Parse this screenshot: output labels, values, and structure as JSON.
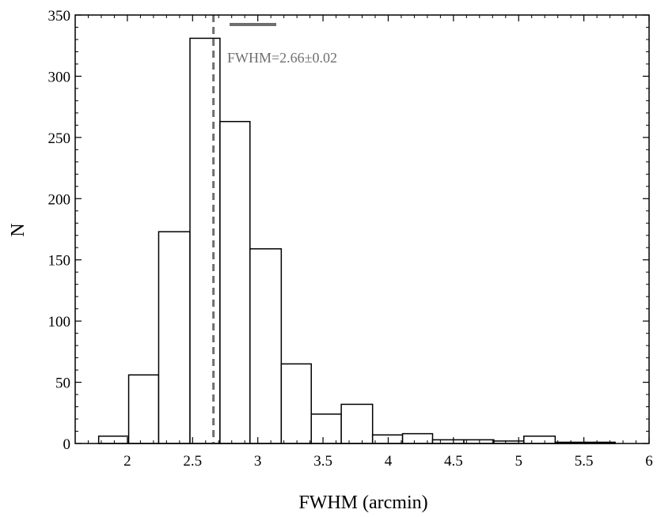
{
  "chart_data": {
    "type": "bar",
    "title": "",
    "xlabel": "FWHM (arcmin)",
    "ylabel": "N",
    "xlim": [
      1.6,
      6.0
    ],
    "ylim": [
      0,
      350
    ],
    "bin_width": 0.2333,
    "xticks": [
      "2",
      "2.5",
      "3",
      "3.5",
      "4",
      "4.5",
      "5",
      "5.5",
      "6"
    ],
    "yticks": [
      "0",
      "50",
      "100",
      "150",
      "200",
      "250",
      "300",
      "350"
    ],
    "xtick_values": [
      2,
      2.5,
      3,
      3.5,
      4,
      4.5,
      5,
      5.5,
      6
    ],
    "ytick_values": [
      0,
      50,
      100,
      150,
      200,
      250,
      300,
      350
    ],
    "bins": [
      {
        "x0": 1.78,
        "x1": 2.01,
        "value": 6
      },
      {
        "x0": 2.01,
        "x1": 2.24,
        "value": 56
      },
      {
        "x0": 2.24,
        "x1": 2.48,
        "value": 173
      },
      {
        "x0": 2.48,
        "x1": 2.71,
        "value": 331
      },
      {
        "x0": 2.71,
        "x1": 2.94,
        "value": 263
      },
      {
        "x0": 2.94,
        "x1": 3.18,
        "value": 159
      },
      {
        "x0": 3.18,
        "x1": 3.41,
        "value": 65
      },
      {
        "x0": 3.41,
        "x1": 3.64,
        "value": 24
      },
      {
        "x0": 3.64,
        "x1": 3.88,
        "value": 32
      },
      {
        "x0": 3.88,
        "x1": 4.11,
        "value": 7
      },
      {
        "x0": 4.11,
        "x1": 4.34,
        "value": 8
      },
      {
        "x0": 4.34,
        "x1": 4.58,
        "value": 3
      },
      {
        "x0": 4.58,
        "x1": 4.81,
        "value": 3
      },
      {
        "x0": 4.81,
        "x1": 5.04,
        "value": 2
      },
      {
        "x0": 5.04,
        "x1": 5.28,
        "value": 6
      },
      {
        "x0": 5.28,
        "x1": 5.51,
        "value": 1
      },
      {
        "x0": 5.51,
        "x1": 5.74,
        "value": 1
      }
    ],
    "reference_line": {
      "x": 2.66,
      "style": "dashed",
      "color": "#6f6f6f"
    },
    "legend": {
      "label": "FWHM=2.66±0.02",
      "color": "#6f6f6f",
      "placement": "top, near the dashed line"
    },
    "grid": false
  }
}
